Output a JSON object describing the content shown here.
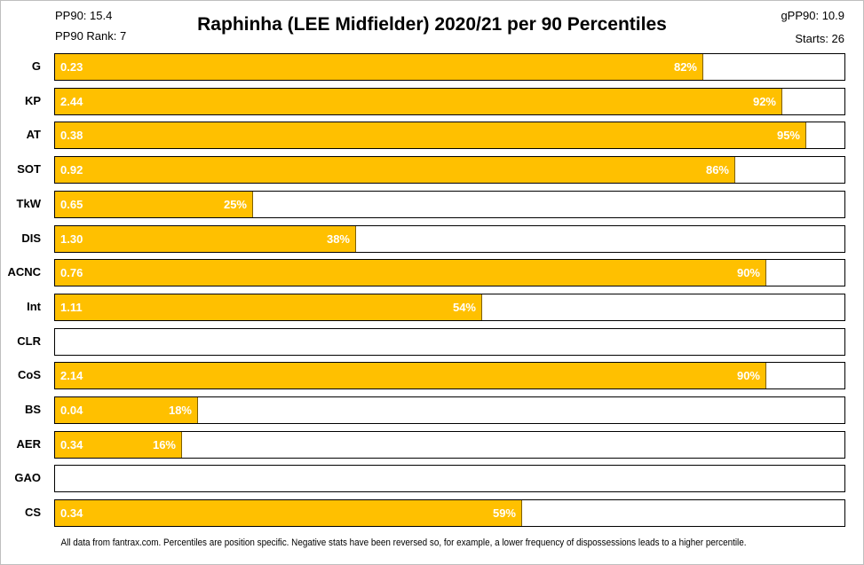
{
  "header": {
    "title": "Raphinha (LEE Midfielder) 2020/21 per 90 Percentiles",
    "pp90": "PP90: 15.4",
    "pp90_rank": "PP90 Rank: 7",
    "gpp90": "gPP90: 10.9",
    "starts": "Starts: 26"
  },
  "footnote": "All data from fantrax.com. Percentiles are position specific. Negative stats have been reversed so, for example, a lower frequency of dispossessions leads to a higher percentile.",
  "colors": {
    "bar": "#ffc000",
    "bar_text": "#ffffff"
  },
  "chart_data": {
    "type": "bar",
    "orientation": "horizontal",
    "title": "Raphinha (LEE Midfielder) 2020/21 per 90 Percentiles",
    "xlim": [
      0,
      100
    ],
    "categories": [
      "G",
      "KP",
      "AT",
      "SOT",
      "TkW",
      "DIS",
      "ACNC",
      "Int",
      "CLR",
      "CoS",
      "BS",
      "AER",
      "GAO",
      "CS"
    ],
    "values": [
      82,
      92,
      95,
      86,
      25,
      38,
      90,
      54,
      null,
      90,
      18,
      16,
      null,
      59
    ],
    "value_labels": [
      "0.23",
      "2.44",
      "0.38",
      "0.92",
      "0.65",
      "1.30",
      "0.76",
      "1.11",
      "",
      "2.14",
      "0.04",
      "0.34",
      "",
      "0.34"
    ],
    "percent_labels": [
      "82%",
      "92%",
      "95%",
      "86%",
      "25%",
      "38%",
      "90%",
      "54%",
      "",
      "90%",
      "18%",
      "16%",
      "",
      "59%"
    ]
  }
}
